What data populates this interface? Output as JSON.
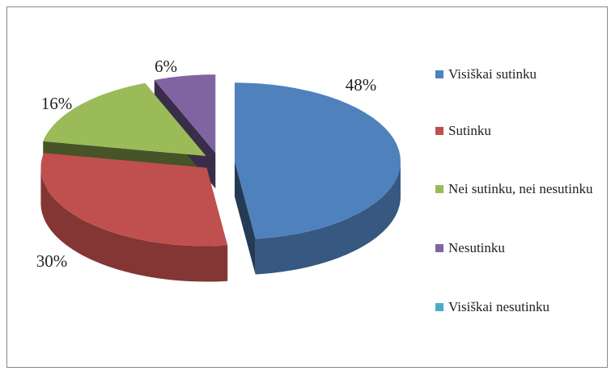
{
  "chart_data": {
    "type": "pie3d",
    "categories": [
      "Visiškai sutinku",
      "Sutinku",
      "Nei sutinku, nei nesutinku",
      "Nesutinku",
      "Visiškai nesutinku"
    ],
    "values": [
      48,
      30,
      16,
      6,
      0
    ],
    "value_labels": [
      "48%",
      "30%",
      "16%",
      "6%",
      null
    ],
    "colors": [
      "#4f81bd",
      "#c0504d",
      "#9bbb59",
      "#8064a2",
      "#4bacc6"
    ],
    "legend": "right"
  }
}
